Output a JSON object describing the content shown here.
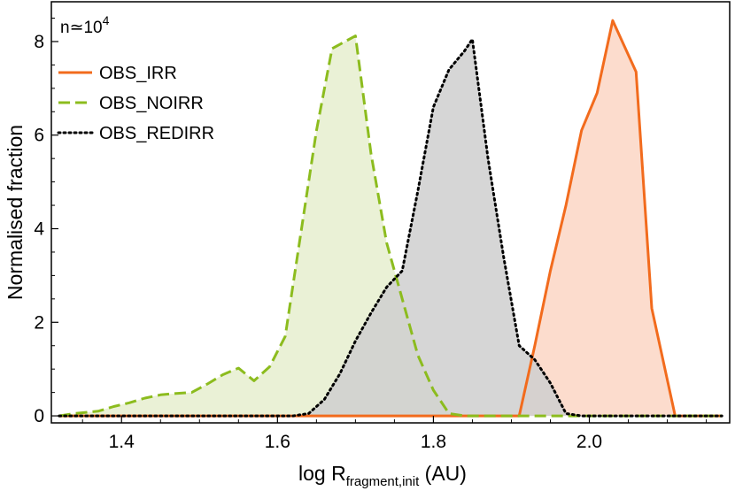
{
  "chart_data": {
    "type": "area",
    "annotation": {
      "base": "n≃10",
      "exp": "4"
    },
    "xlabel": {
      "main": "log R",
      "sub": "fragment,init",
      "unit": " (AU)"
    },
    "ylabel": "Normalised fraction",
    "xlim": [
      1.31,
      2.18
    ],
    "ylim": [
      -0.15,
      8.85
    ],
    "xticks": [
      {
        "value": 1.4,
        "label": "1.4"
      },
      {
        "value": 1.6,
        "label": "1.6"
      },
      {
        "value": 1.8,
        "label": "1.8"
      },
      {
        "value": 2.0,
        "label": "2.0"
      }
    ],
    "yticks": [
      {
        "value": 0,
        "label": "0"
      },
      {
        "value": 2,
        "label": "2"
      },
      {
        "value": 4,
        "label": "4"
      },
      {
        "value": 6,
        "label": "6"
      },
      {
        "value": 8,
        "label": "8"
      }
    ],
    "grid": false,
    "legend_position": "top-left",
    "series": [
      {
        "name": "OBS_IRR",
        "color": "#f26b1d",
        "fill": "#fcd6c4",
        "dash": "solid",
        "x": [
          1.32,
          1.91,
          1.93,
          1.95,
          1.97,
          1.99,
          2.01,
          2.03,
          2.06,
          2.08,
          2.11,
          2.17
        ],
        "y": [
          0,
          0,
          1.5,
          3.1,
          4.5,
          6.1,
          6.9,
          8.45,
          7.35,
          2.3,
          0,
          0
        ]
      },
      {
        "name": "OBS_NOIRR",
        "color": "#8cbc1e",
        "fill": "#e6efcf",
        "dash": "dashed",
        "x": [
          1.32,
          1.34,
          1.37,
          1.39,
          1.41,
          1.43,
          1.45,
          1.47,
          1.49,
          1.51,
          1.53,
          1.55,
          1.57,
          1.59,
          1.61,
          1.63,
          1.65,
          1.67,
          1.7,
          1.72,
          1.74,
          1.76,
          1.78,
          1.8,
          1.82,
          1.84,
          1.86,
          2.17
        ],
        "y": [
          0,
          0.05,
          0.1,
          0.2,
          0.28,
          0.38,
          0.45,
          0.48,
          0.5,
          0.68,
          0.88,
          1.02,
          0.75,
          1.05,
          1.7,
          3.9,
          6.1,
          7.85,
          8.12,
          5.6,
          3.7,
          2.5,
          1.3,
          0.55,
          0.05,
          0,
          0,
          0
        ]
      },
      {
        "name": "OBS_REDIRR",
        "color": "#000000",
        "fill": "#cfcfcf",
        "dash": "dotted",
        "x": [
          1.32,
          1.62,
          1.64,
          1.66,
          1.68,
          1.7,
          1.72,
          1.74,
          1.76,
          1.78,
          1.8,
          1.82,
          1.84,
          1.85,
          1.87,
          1.89,
          1.91,
          1.93,
          1.95,
          1.97,
          1.99,
          2.17
        ],
        "y": [
          0,
          0,
          0.05,
          0.35,
          0.9,
          1.6,
          2.2,
          2.75,
          3.1,
          4.8,
          6.6,
          7.4,
          7.8,
          8.05,
          5.5,
          3.4,
          1.5,
          1.2,
          0.7,
          0.05,
          0,
          0
        ]
      }
    ]
  }
}
